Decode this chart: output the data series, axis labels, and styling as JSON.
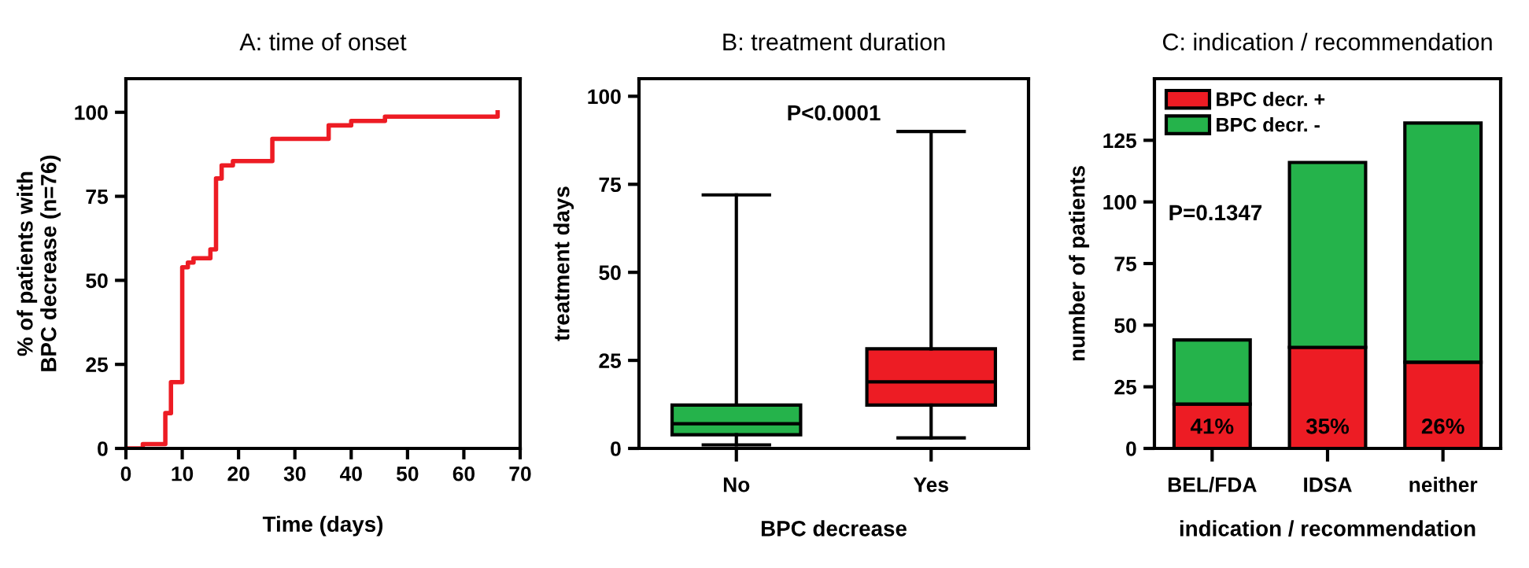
{
  "chart_data": [
    {
      "type": "step",
      "title": "A: time of onset",
      "xlabel": "Time (days)",
      "ylabel": "% of patients with\nBPC decrease (n=76)",
      "series": [
        {
          "color": "#ed1c24",
          "x": [
            0,
            3,
            7,
            8,
            10,
            11,
            12,
            15,
            16,
            17,
            19,
            26,
            36,
            40,
            46,
            66
          ],
          "values": [
            0,
            1.3,
            10.5,
            19.7,
            53.9,
            55.3,
            56.6,
            59.2,
            80.3,
            84.2,
            85.5,
            92.1,
            96.1,
            97.4,
            98.7,
            100
          ]
        }
      ],
      "xlim": [
        0,
        70
      ],
      "xticks": [
        0,
        10,
        20,
        30,
        40,
        50,
        60,
        70
      ],
      "ylim": [
        0,
        110
      ],
      "yticks": [
        0,
        25,
        50,
        75,
        100
      ],
      "grid": false
    },
    {
      "type": "box",
      "title": "B: treatment duration",
      "xlabel": "BPC decrease",
      "ylabel": "treatment days",
      "categories": [
        "No",
        "Yes"
      ],
      "colors": [
        "#25b34b",
        "#ed1c24"
      ],
      "boxes": [
        {
          "low": 1,
          "q1": 3.9,
          "median": 7,
          "q3": 12.3,
          "high": 72
        },
        {
          "low": 3,
          "q1": 12.3,
          "median": 18.9,
          "q3": 28.3,
          "high": 90
        }
      ],
      "ylim": [
        0,
        105
      ],
      "yticks": [
        0,
        25,
        50,
        75,
        100
      ],
      "annotations": [
        "P<0.0001"
      ],
      "grid": false
    },
    {
      "type": "bar",
      "stacked": true,
      "title": "C: indication / recommendation",
      "xlabel": "indication / recommendation",
      "ylabel": "number of patients",
      "categories": [
        "BEL/FDA",
        "IDSA",
        "neither"
      ],
      "series": [
        {
          "name": "BPC decr. +",
          "color": "#ed1c24",
          "values": [
            18,
            41,
            35
          ]
        },
        {
          "name": "BPC decr. -",
          "color": "#25b34b",
          "values": [
            26,
            75,
            97
          ]
        }
      ],
      "ylim": [
        0,
        150
      ],
      "yticks": [
        0,
        25,
        50,
        75,
        100,
        125
      ],
      "annotations": [
        "P=0.1347",
        "41%",
        "35%",
        "26%"
      ],
      "legend": "top left",
      "grid": false
    }
  ]
}
